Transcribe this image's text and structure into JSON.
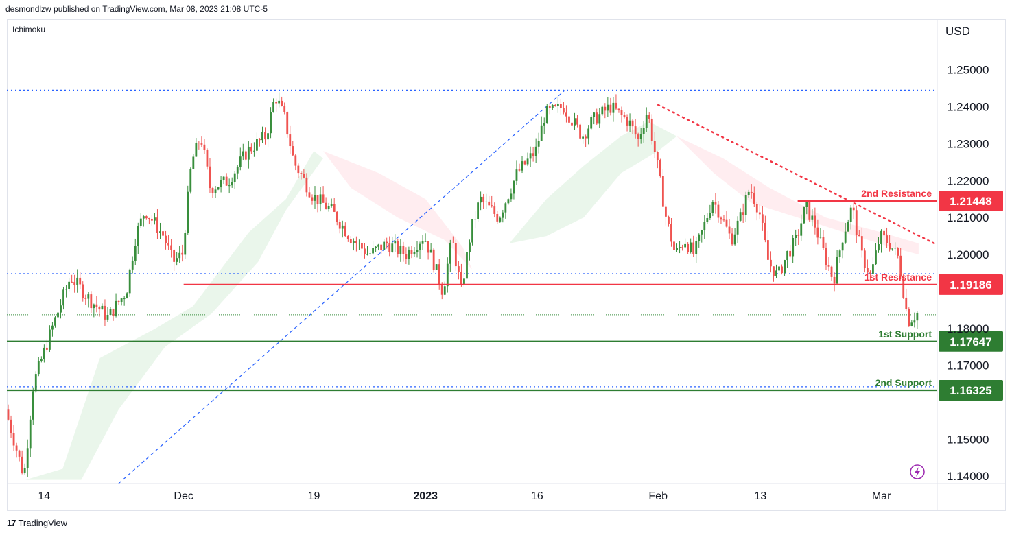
{
  "header": {
    "published": "desmondlzw published on TradingView.com, Mar 08, 2023 21:08 UTC-5"
  },
  "indicator_label": "Ichimoku",
  "footer": {
    "brand": "TradingView"
  },
  "colors": {
    "up": "#26a69a",
    "up_candle": "#388e3c",
    "down": "#ef5350",
    "support": "#2e7d32",
    "resistance": "#f23645",
    "cloud_bull": "#e8f5e9",
    "cloud_bear": "#ffebee",
    "dotted": "#2962ff"
  },
  "chart_data": {
    "type": "candlestick",
    "currency": "USD",
    "ylim": [
      1.138,
      1.2635
    ],
    "y_ticks": [
      "1.25000",
      "1.24000",
      "1.23000",
      "1.22000",
      "1.21000",
      "1.20000",
      "1.18000",
      "1.17000",
      "1.15000",
      "1.14000"
    ],
    "y_tick_values": [
      1.25,
      1.24,
      1.23,
      1.22,
      1.21,
      1.2,
      1.18,
      1.17,
      1.15,
      1.14
    ],
    "x_ticks": [
      {
        "label": "14",
        "pos": 0.04
      },
      {
        "label": "Dec",
        "pos": 0.19
      },
      {
        "label": "19",
        "pos": 0.33
      },
      {
        "label": "2023",
        "pos": 0.45
      },
      {
        "label": "16",
        "pos": 0.57
      },
      {
        "label": "Feb",
        "pos": 0.7
      },
      {
        "label": "13",
        "pos": 0.81
      },
      {
        "label": "Mar",
        "pos": 0.94
      }
    ],
    "price_path": [
      [
        0.0,
        1.158
      ],
      [
        0.02,
        1.14
      ],
      [
        0.03,
        1.165
      ],
      [
        0.05,
        1.18
      ],
      [
        0.07,
        1.194
      ],
      [
        0.09,
        1.188
      ],
      [
        0.11,
        1.183
      ],
      [
        0.13,
        1.19
      ],
      [
        0.14,
        1.205
      ],
      [
        0.15,
        1.212
      ],
      [
        0.17,
        1.205
      ],
      [
        0.18,
        1.198
      ],
      [
        0.19,
        1.2
      ],
      [
        0.2,
        1.225
      ],
      [
        0.21,
        1.232
      ],
      [
        0.22,
        1.218
      ],
      [
        0.24,
        1.22
      ],
      [
        0.26,
        1.228
      ],
      [
        0.28,
        1.232
      ],
      [
        0.29,
        1.243
      ],
      [
        0.3,
        1.237
      ],
      [
        0.31,
        1.225
      ],
      [
        0.33,
        1.216
      ],
      [
        0.35,
        1.212
      ],
      [
        0.37,
        1.205
      ],
      [
        0.39,
        1.2
      ],
      [
        0.41,
        1.203
      ],
      [
        0.43,
        1.2
      ],
      [
        0.45,
        1.205
      ],
      [
        0.46,
        1.198
      ],
      [
        0.47,
        1.19
      ],
      [
        0.48,
        1.204
      ],
      [
        0.49,
        1.19
      ],
      [
        0.5,
        1.206
      ],
      [
        0.51,
        1.215
      ],
      [
        0.53,
        1.21
      ],
      [
        0.55,
        1.222
      ],
      [
        0.57,
        1.228
      ],
      [
        0.58,
        1.238
      ],
      [
        0.6,
        1.24
      ],
      [
        0.62,
        1.232
      ],
      [
        0.63,
        1.236
      ],
      [
        0.65,
        1.24
      ],
      [
        0.67,
        1.236
      ],
      [
        0.68,
        1.231
      ],
      [
        0.69,
        1.239
      ],
      [
        0.7,
        1.225
      ],
      [
        0.71,
        1.21
      ],
      [
        0.72,
        1.2
      ],
      [
        0.73,
        1.204
      ],
      [
        0.74,
        1.2
      ],
      [
        0.75,
        1.207
      ],
      [
        0.76,
        1.215
      ],
      [
        0.77,
        1.21
      ],
      [
        0.78,
        1.204
      ],
      [
        0.79,
        1.21
      ],
      [
        0.8,
        1.218
      ],
      [
        0.81,
        1.212
      ],
      [
        0.82,
        1.198
      ],
      [
        0.83,
        1.194
      ],
      [
        0.84,
        1.2
      ],
      [
        0.85,
        1.204
      ],
      [
        0.86,
        1.213
      ],
      [
        0.87,
        1.208
      ],
      [
        0.88,
        1.2
      ],
      [
        0.89,
        1.193
      ],
      [
        0.9,
        1.205
      ],
      [
        0.91,
        1.213
      ],
      [
        0.92,
        1.2
      ],
      [
        0.93,
        1.194
      ],
      [
        0.94,
        1.205
      ],
      [
        0.95,
        1.203
      ],
      [
        0.96,
        1.199
      ],
      [
        0.97,
        1.182
      ],
      [
        0.98,
        1.184
      ]
    ],
    "cloud_bull": [
      [
        0.02,
        1.139
      ],
      [
        0.06,
        1.142
      ],
      [
        0.1,
        1.172
      ],
      [
        0.16,
        1.18
      ],
      [
        0.2,
        1.186
      ],
      [
        0.26,
        1.206
      ],
      [
        0.3,
        1.215
      ],
      [
        0.33,
        1.228
      ],
      [
        0.34,
        1.226
      ],
      [
        0.3,
        1.212
      ],
      [
        0.27,
        1.198
      ],
      [
        0.22,
        1.184
      ],
      [
        0.17,
        1.175
      ],
      [
        0.12,
        1.158
      ],
      [
        0.08,
        1.139
      ]
    ],
    "cloud_bear": [
      [
        0.34,
        1.228
      ],
      [
        0.4,
        1.222
      ],
      [
        0.45,
        1.215
      ],
      [
        0.49,
        1.202
      ],
      [
        0.5,
        1.196
      ],
      [
        0.47,
        1.204
      ],
      [
        0.42,
        1.21
      ],
      [
        0.37,
        1.218
      ]
    ],
    "cloud_bull2": [
      [
        0.54,
        1.203
      ],
      [
        0.58,
        1.215
      ],
      [
        0.62,
        1.224
      ],
      [
        0.66,
        1.232
      ],
      [
        0.69,
        1.236
      ],
      [
        0.72,
        1.232
      ],
      [
        0.7,
        1.228
      ],
      [
        0.66,
        1.222
      ],
      [
        0.62,
        1.21
      ],
      [
        0.58,
        1.205
      ]
    ],
    "cloud_bear2": [
      [
        0.72,
        1.232
      ],
      [
        0.76,
        1.222
      ],
      [
        0.8,
        1.214
      ],
      [
        0.85,
        1.21
      ],
      [
        0.9,
        1.206
      ],
      [
        0.95,
        1.202
      ],
      [
        0.98,
        1.2
      ],
      [
        0.98,
        1.203
      ],
      [
        0.94,
        1.206
      ],
      [
        0.88,
        1.21
      ],
      [
        0.82,
        1.218
      ],
      [
        0.77,
        1.226
      ]
    ],
    "levels": [
      {
        "label": "2nd Resistance",
        "value_label": "1.21448",
        "value": 1.21448,
        "kind": "resistance",
        "from": 0.85
      },
      {
        "label": "1st Resistance",
        "value_label": "1.19186",
        "value": 1.19186,
        "kind": "resistance",
        "from": 0.19
      },
      {
        "label": "1st Support",
        "value_label": "1.17647",
        "value": 1.17647,
        "kind": "support",
        "from": 0.0
      },
      {
        "label": "2nd Support",
        "value_label": "1.16325",
        "value": 1.16325,
        "kind": "support",
        "from": 0.0
      }
    ],
    "dotted_horizontals": [
      1.2445,
      1.1948,
      1.1642
    ],
    "current_price_line": 1.1837,
    "trendline_down": [
      [
        0.7,
        1.2405
      ],
      [
        1.0,
        1.2026
      ]
    ],
    "trendline_up": [
      [
        0.12,
        1.138
      ],
      [
        0.6,
        1.2445
      ]
    ]
  }
}
